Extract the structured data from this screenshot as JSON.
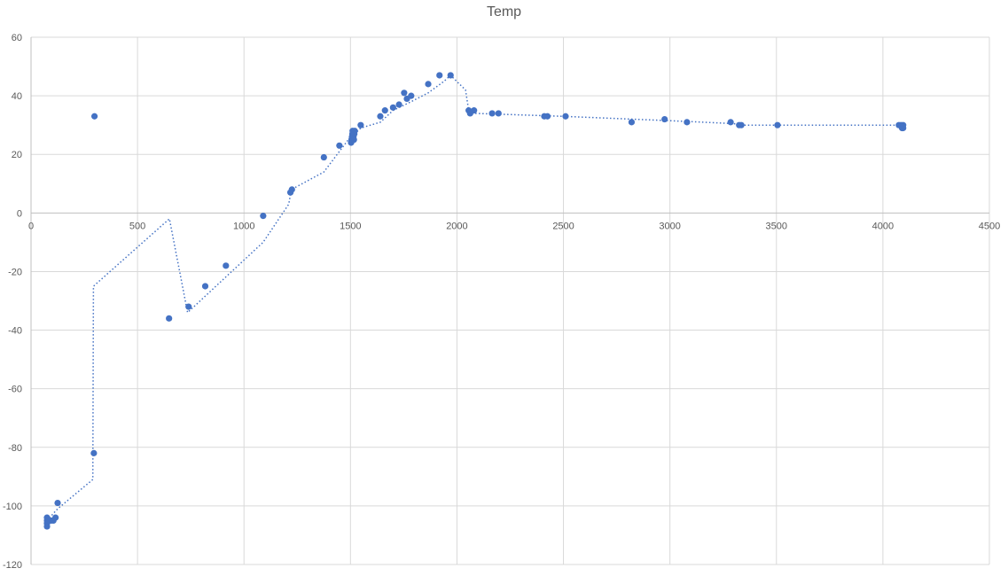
{
  "chart_data": {
    "type": "scatter",
    "title": "Temp",
    "xlim": [
      0,
      4500
    ],
    "ylim": [
      -120,
      60
    ],
    "x_ticks": [
      0,
      500,
      1000,
      1500,
      2000,
      2500,
      3000,
      3500,
      4000,
      4500
    ],
    "y_ticks": [
      -120,
      -100,
      -80,
      -60,
      -40,
      -20,
      0,
      20,
      40,
      60
    ],
    "grid": true,
    "legend": "none",
    "colors": {
      "marker": "#4472C4",
      "trendline": "#4472C4",
      "grid": "#D9D9D9",
      "axis": "#BFBFBF",
      "text": "#595959"
    },
    "series": [
      {
        "marker": "circle",
        "points": [
          [
            75,
            -104
          ],
          [
            75,
            -105
          ],
          [
            75,
            -106
          ],
          [
            75,
            -107
          ],
          [
            85,
            -105
          ],
          [
            95,
            -105
          ],
          [
            105,
            -105
          ],
          [
            115,
            -104
          ],
          [
            125,
            -99
          ],
          [
            295,
            -82
          ],
          [
            298,
            33
          ],
          [
            648,
            -36
          ],
          [
            740,
            -32
          ],
          [
            818,
            -25
          ],
          [
            915,
            -18
          ],
          [
            1090,
            -1
          ],
          [
            1218,
            7
          ],
          [
            1225,
            8
          ],
          [
            1375,
            19
          ],
          [
            1448,
            23
          ],
          [
            1503,
            24
          ],
          [
            1505,
            25
          ],
          [
            1507,
            26
          ],
          [
            1509,
            27
          ],
          [
            1510,
            28
          ],
          [
            1512,
            27
          ],
          [
            1514,
            26
          ],
          [
            1516,
            25
          ],
          [
            1518,
            27
          ],
          [
            1520,
            28
          ],
          [
            1548,
            30
          ],
          [
            1640,
            33
          ],
          [
            1662,
            35
          ],
          [
            1700,
            36
          ],
          [
            1728,
            37
          ],
          [
            1752,
            41
          ],
          [
            1765,
            39
          ],
          [
            1785,
            40
          ],
          [
            1865,
            44
          ],
          [
            1918,
            47
          ],
          [
            1970,
            47
          ],
          [
            2055,
            35
          ],
          [
            2062,
            34
          ],
          [
            2080,
            35
          ],
          [
            2165,
            34
          ],
          [
            2195,
            34
          ],
          [
            2410,
            33
          ],
          [
            2425,
            33
          ],
          [
            2510,
            33
          ],
          [
            2820,
            31
          ],
          [
            2975,
            32
          ],
          [
            3080,
            31
          ],
          [
            3285,
            31
          ],
          [
            3325,
            30
          ],
          [
            3335,
            30
          ],
          [
            3505,
            30
          ],
          [
            4075,
            30
          ],
          [
            4085,
            30
          ],
          [
            4090,
            29
          ],
          [
            4095,
            30
          ],
          [
            4095,
            29
          ]
        ]
      }
    ],
    "trendline": {
      "style": "dotted",
      "type": "moving-average",
      "points": [
        [
          75,
          -105
        ],
        [
          125,
          -101
        ],
        [
          290,
          -91
        ],
        [
          293,
          -25
        ],
        [
          650,
          -2
        ],
        [
          735,
          -34
        ],
        [
          1090,
          -10
        ],
        [
          1210,
          3
        ],
        [
          1222,
          8
        ],
        [
          1375,
          14
        ],
        [
          1500,
          26
        ],
        [
          1520,
          27
        ],
        [
          1548,
          29
        ],
        [
          1640,
          31
        ],
        [
          1700,
          35
        ],
        [
          1785,
          38
        ],
        [
          1865,
          41
        ],
        [
          1940,
          45
        ],
        [
          1970,
          47
        ],
        [
          2040,
          42
        ],
        [
          2055,
          35
        ],
        [
          2080,
          34
        ],
        [
          2500,
          33
        ],
        [
          3000,
          31.5
        ],
        [
          3300,
          30.5
        ],
        [
          3335,
          30
        ],
        [
          4095,
          30
        ]
      ]
    }
  }
}
